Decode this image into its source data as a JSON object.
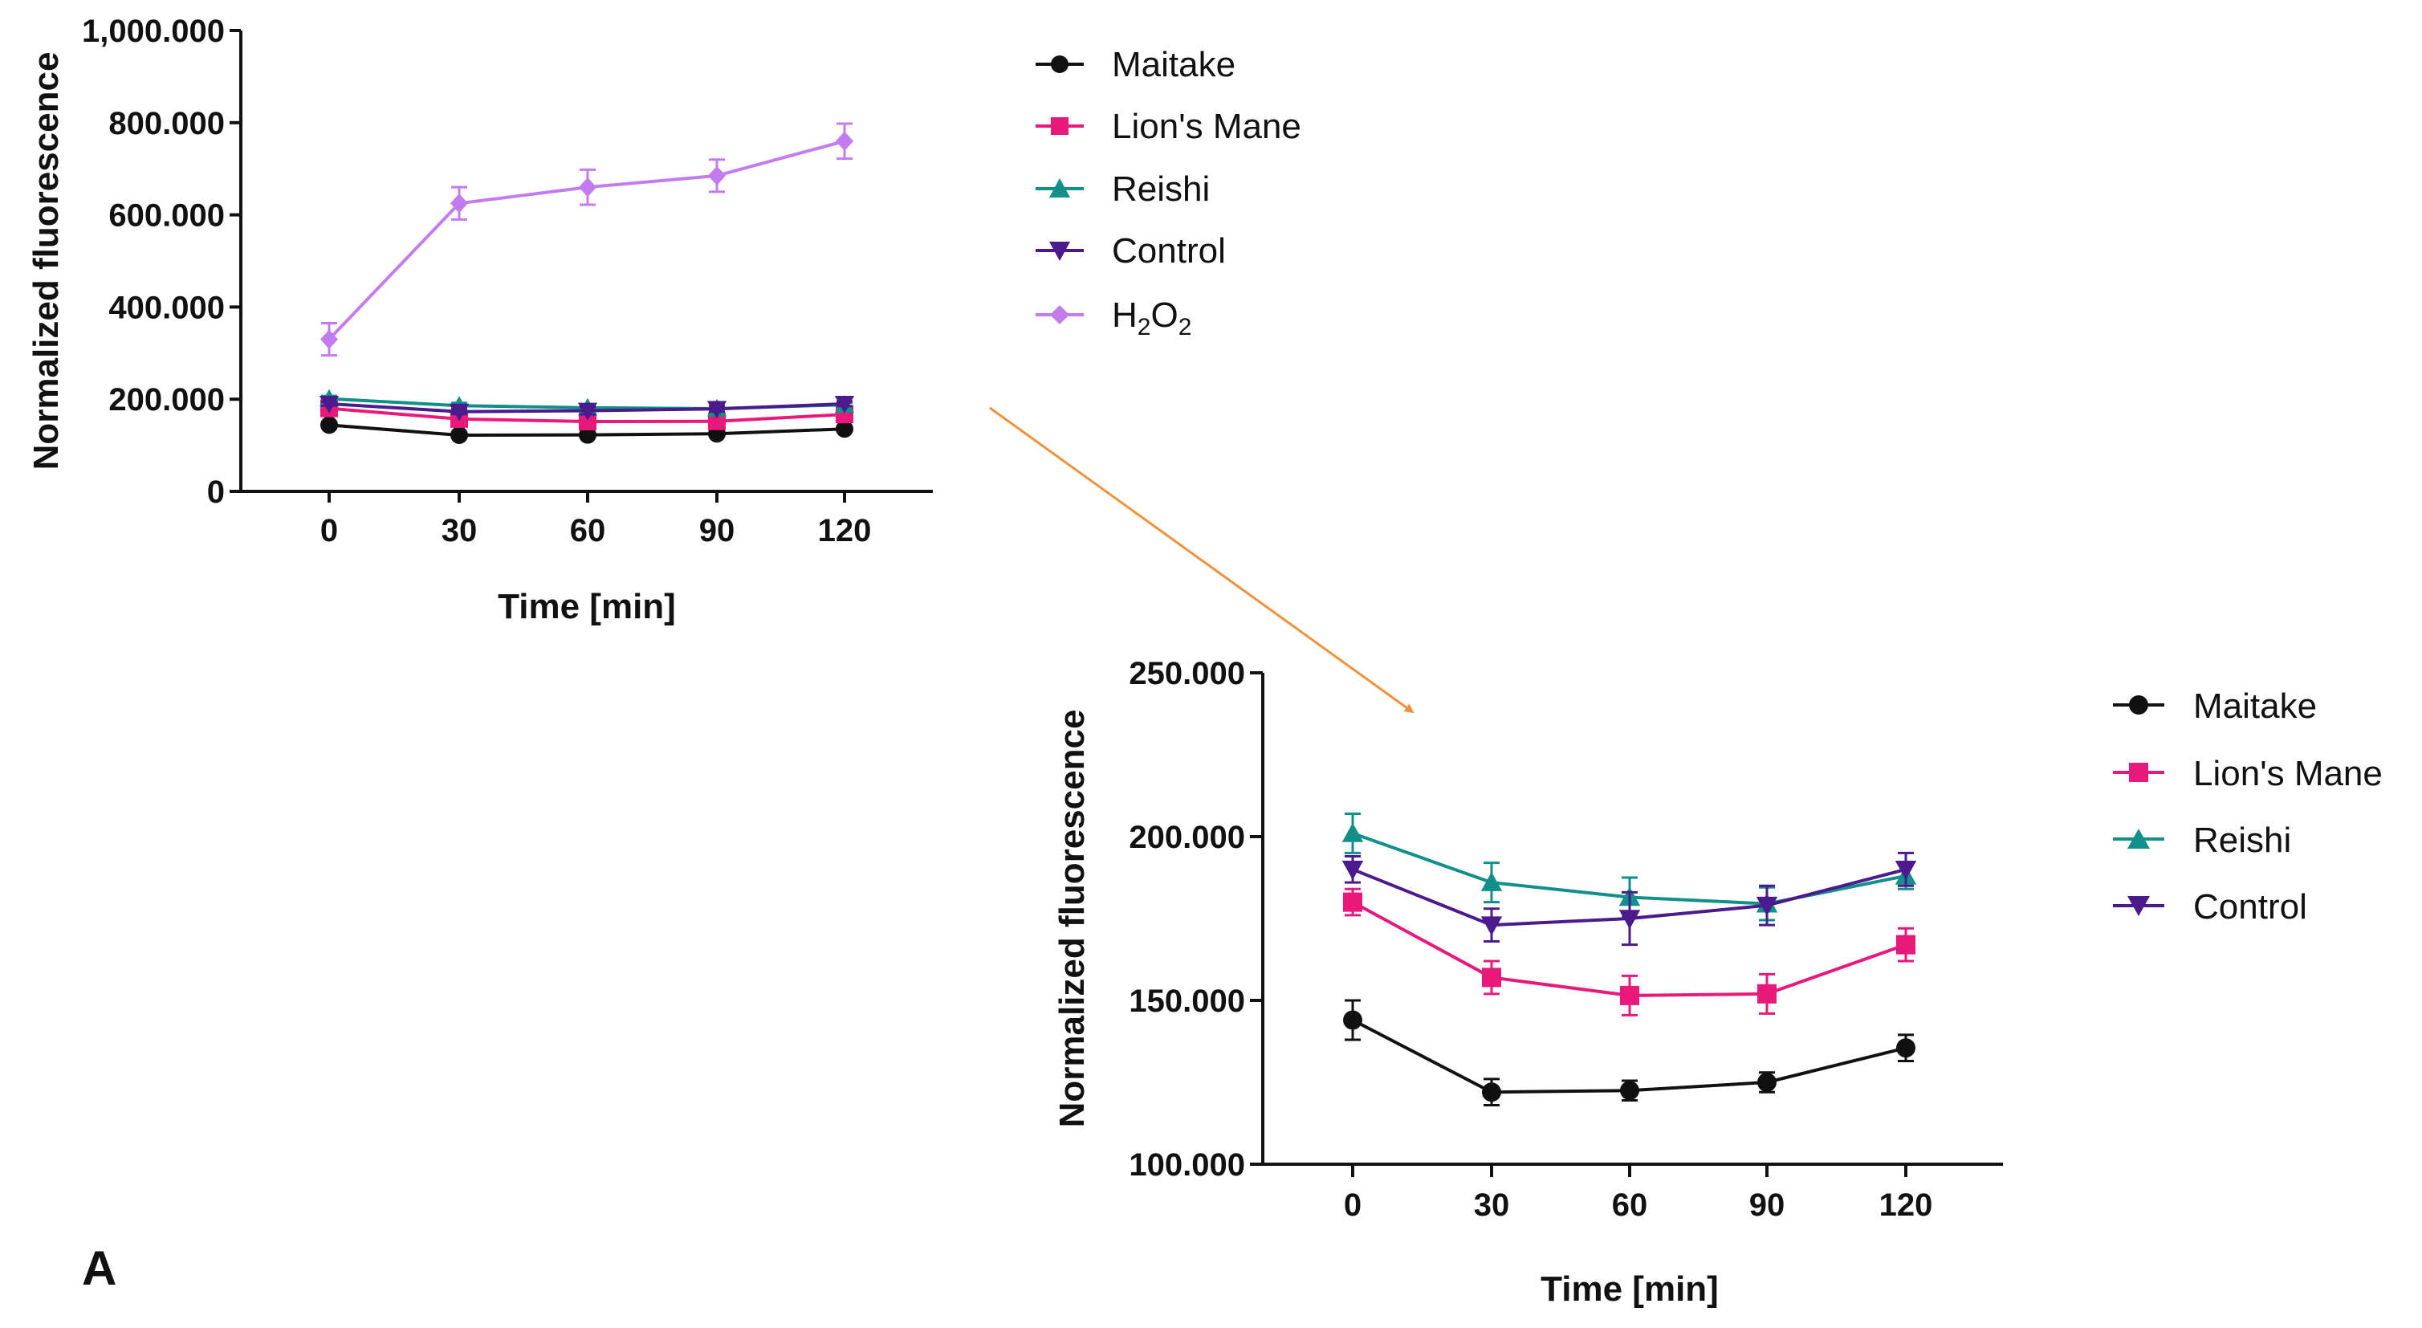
{
  "panel_label": "A",
  "colors": {
    "Maitake": "#111111",
    "Lion's Mane": "#e8197a",
    "Reishi": "#11908a",
    "Control": "#4b1a8c",
    "H2O2": "#c57bf0",
    "arrow": "#f0913c"
  },
  "chart_data": [
    {
      "type": "line",
      "x": [
        0,
        30,
        60,
        90,
        120
      ],
      "xticks": [
        "0",
        "30",
        "60",
        "90",
        "120"
      ],
      "xlabel": "Time [min]",
      "ylabel": "Normalized fluorescence",
      "ylim": [
        0,
        1000000
      ],
      "yticks": [
        0,
        200000,
        400000,
        600000,
        800000,
        1000000
      ],
      "ytick_labels": [
        "0",
        "200.000",
        "400.000",
        "600.000",
        "800.000",
        "1,000.000"
      ],
      "legend": {
        "position": "right",
        "entries": [
          "Maitake",
          "Lion's Mane",
          "Reishi",
          "Control",
          "H2O2"
        ],
        "h2o2_label": {
          "main": "H",
          "sub1": "2",
          "mid": "O",
          "sub2": "2"
        }
      },
      "series": [
        {
          "name": "Maitake",
          "marker": "circle",
          "values": [
            144000,
            122000,
            122500,
            125000,
            135500
          ],
          "errors": [
            6000,
            4000,
            3000,
            3000,
            4000
          ]
        },
        {
          "name": "Lion's Mane",
          "marker": "square",
          "values": [
            180000,
            157000,
            151500,
            152000,
            167000
          ],
          "errors": [
            4000,
            5000,
            6000,
            6000,
            5000
          ]
        },
        {
          "name": "Reishi",
          "marker": "triangle-up",
          "values": [
            201000,
            186000,
            181500,
            179500,
            188000
          ],
          "errors": [
            6000,
            6000,
            6000,
            5000,
            4000
          ]
        },
        {
          "name": "Control",
          "marker": "triangle-down",
          "values": [
            190000,
            173000,
            175000,
            179000,
            190000
          ],
          "errors": [
            4000,
            5000,
            8000,
            6000,
            5000
          ]
        },
        {
          "name": "H2O2",
          "marker": "diamond",
          "values": [
            330000,
            625000,
            660000,
            685000,
            760000
          ],
          "errors": [
            35000,
            35000,
            38000,
            35000,
            38000
          ]
        }
      ]
    },
    {
      "type": "line",
      "x": [
        0,
        30,
        60,
        90,
        120
      ],
      "xticks": [
        "0",
        "30",
        "60",
        "90",
        "120"
      ],
      "xlabel": "Time [min]",
      "ylabel": "Normalized fluorescence",
      "ylim": [
        100000,
        250000
      ],
      "yticks": [
        100000,
        150000,
        200000,
        250000
      ],
      "ytick_labels": [
        "100.000",
        "150.000",
        "200.000",
        "250.000"
      ],
      "legend": {
        "position": "right",
        "entries": [
          "Maitake",
          "Lion's Mane",
          "Reishi",
          "Control"
        ]
      },
      "series": [
        {
          "name": "Maitake",
          "marker": "circle",
          "values": [
            144000,
            122000,
            122500,
            125000,
            135500
          ],
          "errors": [
            6000,
            4000,
            3000,
            3000,
            4000
          ]
        },
        {
          "name": "Lion's Mane",
          "marker": "square",
          "values": [
            180000,
            157000,
            151500,
            152000,
            167000
          ],
          "errors": [
            4000,
            5000,
            6000,
            6000,
            5000
          ]
        },
        {
          "name": "Reishi",
          "marker": "triangle-up",
          "values": [
            201000,
            186000,
            181500,
            179500,
            188000
          ],
          "errors": [
            6000,
            6000,
            6000,
            5000,
            4000
          ]
        },
        {
          "name": "Control",
          "marker": "triangle-down",
          "values": [
            190000,
            173000,
            175000,
            179000,
            190000
          ],
          "errors": [
            4000,
            5000,
            8000,
            6000,
            5000
          ]
        }
      ]
    }
  ]
}
